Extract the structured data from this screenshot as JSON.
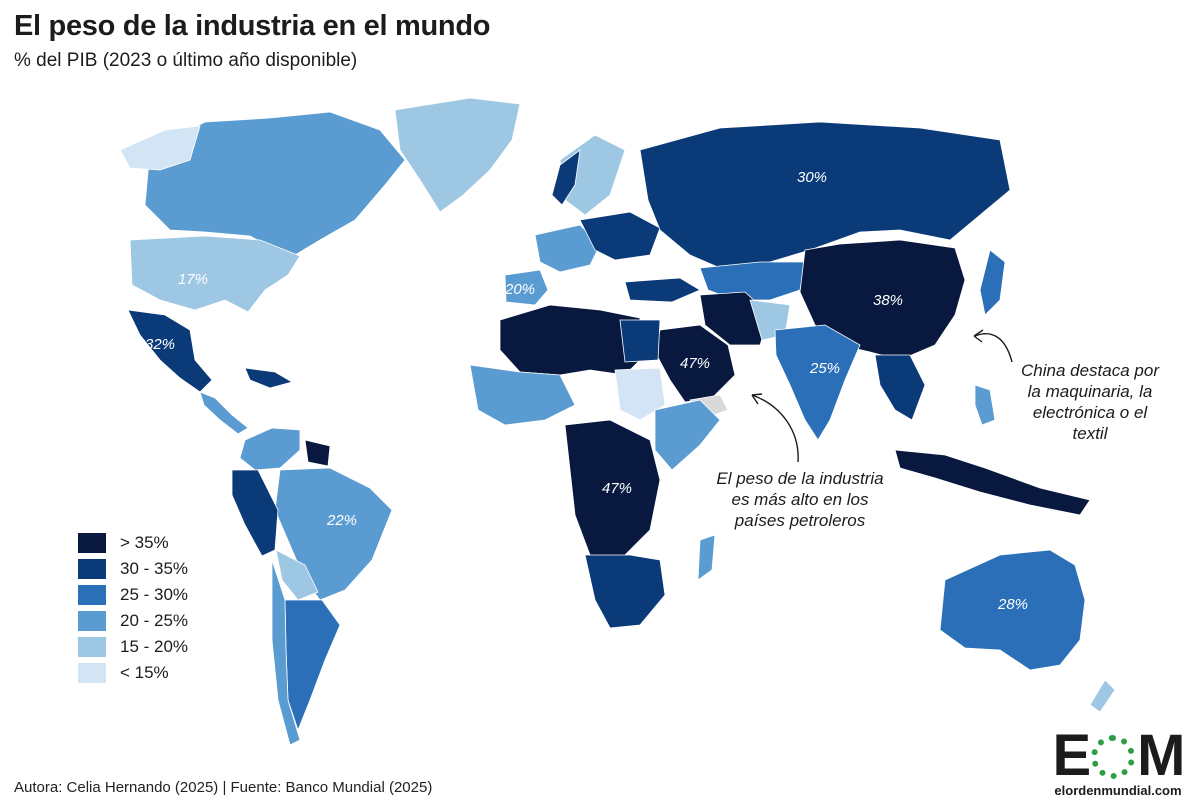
{
  "header": {
    "title": "El peso de la industria en el mundo",
    "subtitle": "% del PIB (2023  o último año disponible)"
  },
  "colors": {
    "gt35": "#08183f",
    "r30_35": "#0b3a78",
    "r25_30": "#2a6fb8",
    "r20_25": "#5a9bd1",
    "r15_20": "#9dc7e3",
    "lt15": "#d3e5f5",
    "nodata": "#d9d9d9",
    "ocean": "#ffffff"
  },
  "legend": [
    {
      "label": "> 35%",
      "color": "#08183f"
    },
    {
      "label": "30 - 35%",
      "color": "#0b3a78"
    },
    {
      "label": "25 - 30%",
      "color": "#2a6fb8"
    },
    {
      "label": "20 - 25%",
      "color": "#5a9bd1"
    },
    {
      "label": "15 - 20%",
      "color": "#9dc7e3"
    },
    {
      "label": "< 15%",
      "color": "#d3e5f5"
    }
  ],
  "values": {
    "russia": "30%",
    "usa": "17%",
    "spain": "20%",
    "mexico": "32%",
    "china": "38%",
    "saudi": "47%",
    "india": "25%",
    "central_africa": "47%",
    "brazil": "22%",
    "australia": "28%"
  },
  "annotations": {
    "china_1": "China destaca por",
    "china_2": "la maquinaria, la",
    "china_3": "electrónica o el",
    "china_4": "textil",
    "oil_1": "El peso de la industria",
    "oil_2": "es más alto en los",
    "oil_3": "países petroleros"
  },
  "footer": "Autora: Celia Hernando (2025) | Fuente: Banco Mundial (2025)",
  "logo": {
    "letter_left": "E",
    "letter_right": "M",
    "url": "elordenmundial.com"
  }
}
